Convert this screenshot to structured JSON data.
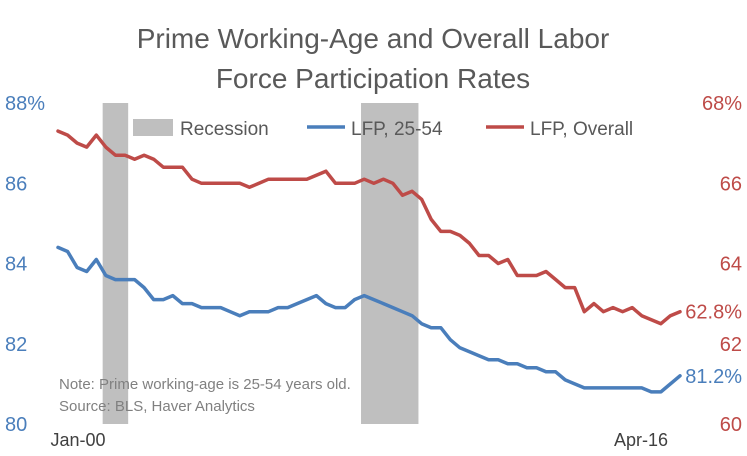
{
  "chart_data": {
    "type": "line",
    "title_lines": [
      "Prime Working-Age and Overall Labor",
      "Force Participation Rates"
    ],
    "x_start_label": "Jan-00",
    "x_end_label": "Apr-16",
    "x_range": [
      "2000-01",
      "2016-04"
    ],
    "left_axis": {
      "ylim": [
        80,
        88
      ],
      "ticks": [
        "88%",
        "86",
        "84",
        "82",
        "80"
      ],
      "color": "#4a7ebb"
    },
    "right_axis": {
      "ylim": [
        60,
        68
      ],
      "ticks": [
        "68%",
        "66",
        "64",
        "62",
        "60"
      ],
      "color": "#be4b48"
    },
    "legend": {
      "placement": "top",
      "items": [
        "Recession",
        "LFP, 25-54",
        "LFP, Overall"
      ]
    },
    "recessions": [
      {
        "start": "2001-03",
        "end": "2001-11"
      },
      {
        "start": "2007-12",
        "end": "2009-06"
      }
    ],
    "series": [
      {
        "name": "LFP, 25-54",
        "axis": "left",
        "color": "#4a7ebb",
        "end_label": "81.2%",
        "points": [
          [
            "2000-01",
            84.4
          ],
          [
            "2000-04",
            84.3
          ],
          [
            "2000-07",
            83.9
          ],
          [
            "2000-10",
            83.8
          ],
          [
            "2001-01",
            84.1
          ],
          [
            "2001-04",
            83.7
          ],
          [
            "2001-07",
            83.6
          ],
          [
            "2001-10",
            83.6
          ],
          [
            "2002-01",
            83.6
          ],
          [
            "2002-04",
            83.4
          ],
          [
            "2002-07",
            83.1
          ],
          [
            "2002-10",
            83.1
          ],
          [
            "2003-01",
            83.2
          ],
          [
            "2003-04",
            83.0
          ],
          [
            "2003-07",
            83.0
          ],
          [
            "2003-10",
            82.9
          ],
          [
            "2004-01",
            82.9
          ],
          [
            "2004-04",
            82.9
          ],
          [
            "2004-07",
            82.8
          ],
          [
            "2004-10",
            82.7
          ],
          [
            "2005-01",
            82.8
          ],
          [
            "2005-04",
            82.8
          ],
          [
            "2005-07",
            82.8
          ],
          [
            "2005-10",
            82.9
          ],
          [
            "2006-01",
            82.9
          ],
          [
            "2006-04",
            83.0
          ],
          [
            "2006-07",
            83.1
          ],
          [
            "2006-10",
            83.2
          ],
          [
            "2007-01",
            83.0
          ],
          [
            "2007-04",
            82.9
          ],
          [
            "2007-07",
            82.9
          ],
          [
            "2007-10",
            83.1
          ],
          [
            "2008-01",
            83.2
          ],
          [
            "2008-04",
            83.1
          ],
          [
            "2008-07",
            83.0
          ],
          [
            "2008-10",
            82.9
          ],
          [
            "2009-01",
            82.8
          ],
          [
            "2009-04",
            82.7
          ],
          [
            "2009-07",
            82.5
          ],
          [
            "2009-10",
            82.4
          ],
          [
            "2010-01",
            82.4
          ],
          [
            "2010-04",
            82.1
          ],
          [
            "2010-07",
            81.9
          ],
          [
            "2010-10",
            81.8
          ],
          [
            "2011-01",
            81.7
          ],
          [
            "2011-04",
            81.6
          ],
          [
            "2011-07",
            81.6
          ],
          [
            "2011-10",
            81.5
          ],
          [
            "2012-01",
            81.5
          ],
          [
            "2012-04",
            81.4
          ],
          [
            "2012-07",
            81.4
          ],
          [
            "2012-10",
            81.3
          ],
          [
            "2013-01",
            81.3
          ],
          [
            "2013-04",
            81.1
          ],
          [
            "2013-07",
            81.0
          ],
          [
            "2013-10",
            80.9
          ],
          [
            "2014-01",
            80.9
          ],
          [
            "2014-04",
            80.9
          ],
          [
            "2014-07",
            80.9
          ],
          [
            "2014-10",
            80.9
          ],
          [
            "2015-01",
            80.9
          ],
          [
            "2015-04",
            80.9
          ],
          [
            "2015-07",
            80.8
          ],
          [
            "2015-10",
            80.8
          ],
          [
            "2016-01",
            81.0
          ],
          [
            "2016-04",
            81.2
          ]
        ]
      },
      {
        "name": "LFP, Overall",
        "axis": "right",
        "color": "#be4b48",
        "end_label": "62.8%",
        "points": [
          [
            "2000-01",
            67.3
          ],
          [
            "2000-04",
            67.2
          ],
          [
            "2000-07",
            67.0
          ],
          [
            "2000-10",
            66.9
          ],
          [
            "2001-01",
            67.2
          ],
          [
            "2001-04",
            66.9
          ],
          [
            "2001-07",
            66.7
          ],
          [
            "2001-10",
            66.7
          ],
          [
            "2002-01",
            66.6
          ],
          [
            "2002-04",
            66.7
          ],
          [
            "2002-07",
            66.6
          ],
          [
            "2002-10",
            66.4
          ],
          [
            "2003-01",
            66.4
          ],
          [
            "2003-04",
            66.4
          ],
          [
            "2003-07",
            66.1
          ],
          [
            "2003-10",
            66.0
          ],
          [
            "2004-01",
            66.0
          ],
          [
            "2004-04",
            66.0
          ],
          [
            "2004-07",
            66.0
          ],
          [
            "2004-10",
            66.0
          ],
          [
            "2005-01",
            65.9
          ],
          [
            "2005-04",
            66.0
          ],
          [
            "2005-07",
            66.1
          ],
          [
            "2005-10",
            66.1
          ],
          [
            "2006-01",
            66.1
          ],
          [
            "2006-04",
            66.1
          ],
          [
            "2006-07",
            66.1
          ],
          [
            "2006-10",
            66.2
          ],
          [
            "2007-01",
            66.3
          ],
          [
            "2007-04",
            66.0
          ],
          [
            "2007-07",
            66.0
          ],
          [
            "2007-10",
            66.0
          ],
          [
            "2008-01",
            66.1
          ],
          [
            "2008-04",
            66.0
          ],
          [
            "2008-07",
            66.1
          ],
          [
            "2008-10",
            66.0
          ],
          [
            "2009-01",
            65.7
          ],
          [
            "2009-04",
            65.8
          ],
          [
            "2009-07",
            65.6
          ],
          [
            "2009-10",
            65.1
          ],
          [
            "2010-01",
            64.8
          ],
          [
            "2010-04",
            64.8
          ],
          [
            "2010-07",
            64.7
          ],
          [
            "2010-10",
            64.5
          ],
          [
            "2011-01",
            64.2
          ],
          [
            "2011-04",
            64.2
          ],
          [
            "2011-07",
            64.0
          ],
          [
            "2011-10",
            64.1
          ],
          [
            "2012-01",
            63.7
          ],
          [
            "2012-04",
            63.7
          ],
          [
            "2012-07",
            63.7
          ],
          [
            "2012-10",
            63.8
          ],
          [
            "2013-01",
            63.6
          ],
          [
            "2013-04",
            63.4
          ],
          [
            "2013-07",
            63.4
          ],
          [
            "2013-10",
            62.8
          ],
          [
            "2014-01",
            63.0
          ],
          [
            "2014-04",
            62.8
          ],
          [
            "2014-07",
            62.9
          ],
          [
            "2014-10",
            62.8
          ],
          [
            "2015-01",
            62.9
          ],
          [
            "2015-04",
            62.7
          ],
          [
            "2015-07",
            62.6
          ],
          [
            "2015-10",
            62.5
          ],
          [
            "2016-01",
            62.7
          ],
          [
            "2016-04",
            62.8
          ]
        ]
      }
    ],
    "notes": [
      "Note: Prime working-age is 25-54 years old.",
      "Source: BLS, Haver Analytics"
    ],
    "grid": false
  }
}
